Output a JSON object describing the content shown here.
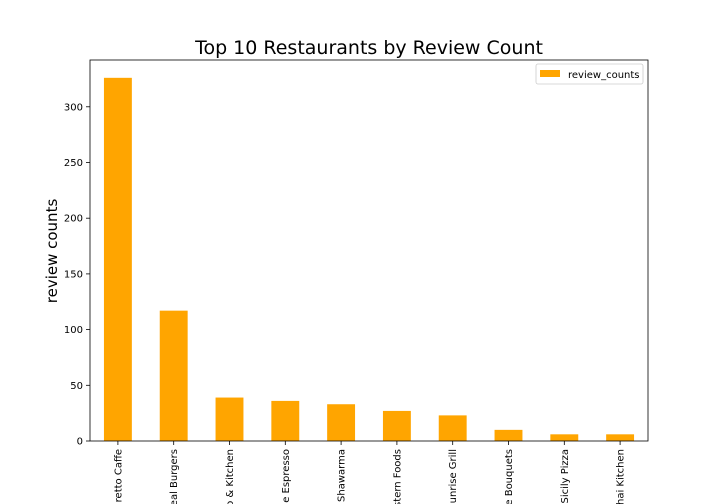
{
  "chart_data": {
    "type": "bar",
    "title": "Top 10 Restaurants by Review Count",
    "xlabel": "",
    "ylabel": "review counts",
    "ylim": [
      0,
      342
    ],
    "yticks": [
      0,
      50,
      100,
      150,
      200,
      250,
      300
    ],
    "grid": false,
    "legend_position": "top-right",
    "bar_color": "#FFA500",
    "categories": [
      "retto Caffe",
      "eal Burgers",
      "o & Kitchen",
      "e Espresso",
      "Shawarma",
      "stern Foods",
      "unrise Grill",
      "e Bouquets",
      "Sicily Pizza",
      "hai Kitchen"
    ],
    "series": [
      {
        "name": "review_counts",
        "values": [
          326,
          117,
          39,
          36,
          33,
          27,
          23,
          10,
          6,
          6
        ]
      }
    ]
  }
}
